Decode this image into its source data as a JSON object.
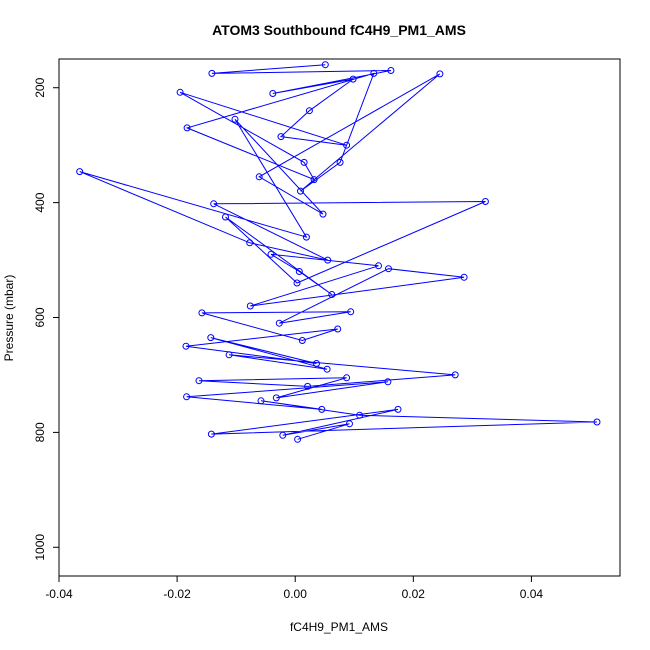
{
  "chart_data": {
    "type": "line",
    "title": "ATOM3 Southbound fC4H9_PM1_AMS",
    "xlabel": "fC4H9_PM1_AMS",
    "ylabel": "Pressure (mbar)",
    "xlim": [
      -0.04,
      0.055
    ],
    "ylim": [
      1050,
      150
    ],
    "y_reversed": true,
    "x_ticks": [
      -0.04,
      -0.02,
      0.0,
      0.02,
      0.04
    ],
    "x_tick_labels": [
      "-0.04",
      "-0.02",
      "0.00",
      "0.02",
      "0.04"
    ],
    "y_ticks": [
      200,
      400,
      600,
      800,
      1000
    ],
    "y_tick_labels": [
      "200",
      "400",
      "600",
      "800",
      "1000"
    ],
    "grid": false,
    "legend": "none",
    "series": [
      {
        "color": "#0000ff",
        "marker": "open-circle",
        "x": [
          0.0051,
          -0.0141,
          0.0162,
          -0.0038,
          0.0098,
          0.0024,
          -0.0024,
          0.0087,
          -0.0195,
          0.0015,
          0.0032,
          -0.0183,
          0.0133,
          0.0076,
          0.0009,
          0.0245,
          -0.0061,
          0.0047,
          -0.0102,
          0.0019,
          -0.0365,
          -0.0077,
          0.0055,
          -0.0138,
          0.0322,
          0.0003,
          -0.0118,
          0.0062,
          0.0007,
          -0.0041,
          0.0141,
          -0.0076,
          0.0286,
          0.0158,
          -0.0027,
          0.0094,
          -0.0158,
          0.0012,
          0.0072,
          -0.0185,
          0.0036,
          -0.0143,
          0.0054,
          -0.0112,
          0.0271,
          0.0021,
          -0.0163,
          0.0087,
          -0.0032,
          0.0157,
          -0.0184,
          0.0045,
          -0.0058,
          0.0109,
          0.0511,
          -0.0142,
          0.0174,
          -0.0021,
          0.0092,
          0.0004
        ],
        "y": [
          160,
          175,
          170,
          210,
          185,
          240,
          285,
          300,
          208,
          330,
          360,
          270,
          175,
          330,
          380,
          176,
          355,
          420,
          255,
          460,
          346,
          470,
          500,
          402,
          398,
          540,
          425,
          560,
          520,
          490,
          510,
          580,
          530,
          515,
          610,
          590,
          592,
          640,
          620,
          650,
          680,
          635,
          690,
          665,
          700,
          720,
          710,
          705,
          740,
          712,
          738,
          760,
          745,
          770,
          782,
          803,
          760,
          805,
          785,
          812
        ]
      }
    ]
  }
}
